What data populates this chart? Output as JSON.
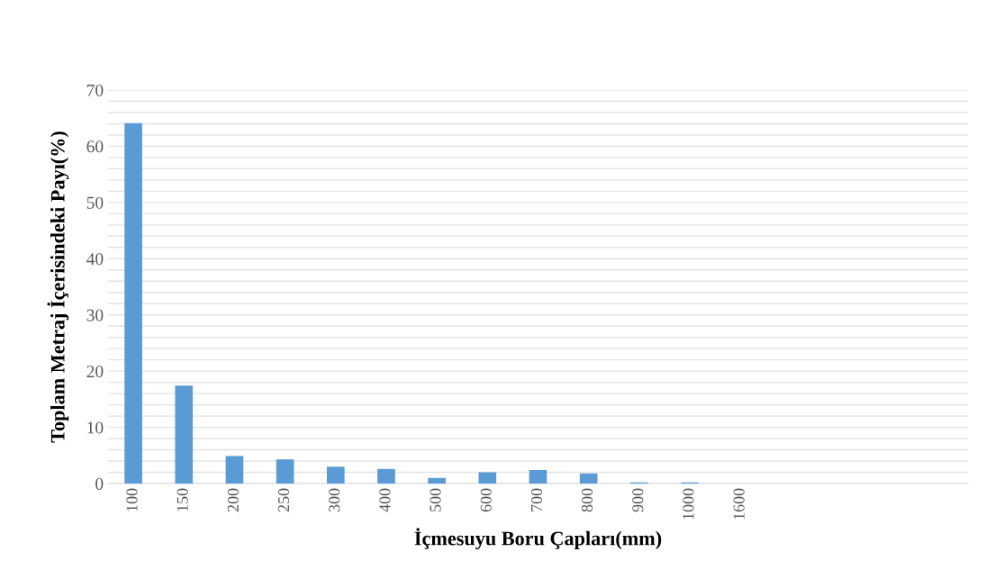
{
  "chart_data": {
    "type": "bar",
    "xlabel": "İçmesuyu Boru Çapları(mm)",
    "ylabel": "Toplam Metraj İçerisindeki Payı(%)",
    "categories": [
      "100",
      "150",
      "200",
      "250",
      "300",
      "400",
      "500",
      "600",
      "700",
      "800",
      "900",
      "1000",
      "1600",
      null,
      null,
      null,
      null
    ],
    "values": [
      64.1,
      17.4,
      4.9,
      4.3,
      3.0,
      2.6,
      1.0,
      2.0,
      2.4,
      1.8,
      0.2,
      0.2,
      0,
      null,
      null,
      null,
      null
    ],
    "color": "#5b9bd5",
    "ylim": [
      0,
      70
    ],
    "yticks": [
      0,
      {
        "value": 2,
        "label": null
      },
      {
        "value": 4,
        "label": null
      },
      {
        "value": 6,
        "label": null
      },
      {
        "value": 8,
        "label": null
      },
      10,
      {
        "value": 12,
        "label": null
      },
      {
        "value": 14,
        "label": null
      },
      {
        "value": 16,
        "label": null
      },
      {
        "value": 18,
        "label": null
      },
      20,
      {
        "value": 22,
        "label": null
      },
      {
        "value": 24,
        "label": null
      },
      {
        "value": 26,
        "label": null
      },
      {
        "value": 28,
        "label": null
      },
      30,
      {
        "value": 32,
        "label": null
      },
      {
        "value": 34,
        "label": null
      },
      {
        "value": 36,
        "label": null
      },
      {
        "value": 38,
        "label": null
      },
      40,
      {
        "value": 42,
        "label": null
      },
      {
        "value": 44,
        "label": null
      },
      {
        "value": 46,
        "label": null
      },
      {
        "value": 48,
        "label": null
      },
      50,
      {
        "value": 52,
        "label": null
      },
      {
        "value": 54,
        "label": null
      },
      {
        "value": 56,
        "label": null
      },
      {
        "value": 58,
        "label": null
      },
      60,
      {
        "value": 62,
        "label": null
      },
      {
        "value": 64,
        "label": null
      },
      {
        "value": 66,
        "label": null
      },
      {
        "value": 68,
        "label": null
      },
      70
    ],
    "grid": "y"
  }
}
